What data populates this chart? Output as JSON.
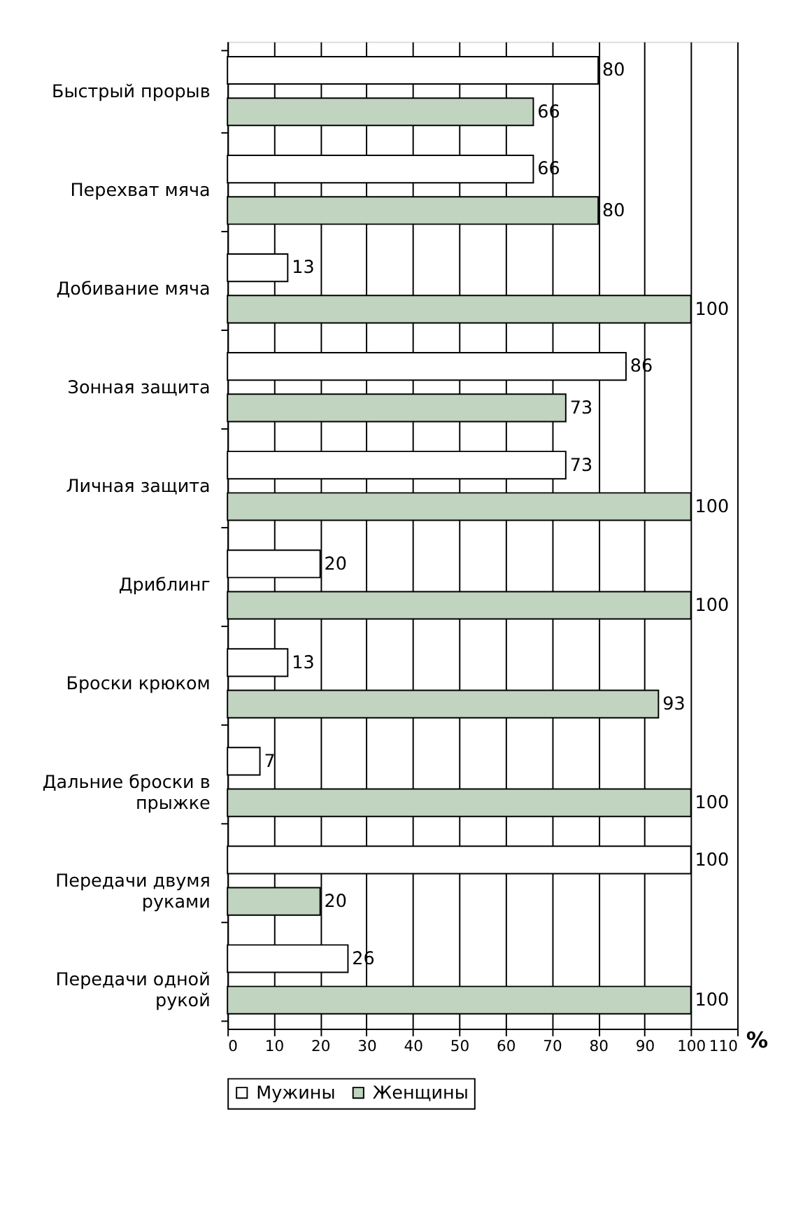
{
  "chart_data": {
    "type": "bar",
    "orientation": "horizontal",
    "xlabel": "%",
    "categories": [
      "Быстрый прорыв",
      "Перехват мяча",
      "Добивание мяча",
      "Зонная защита",
      "Личная защита",
      "Дриблинг",
      "Броски крюком",
      "Дальние броски в прыжке",
      "Передачи двумя руками",
      "Передачи одной рукой"
    ],
    "series": [
      {
        "name": "Мужины",
        "color": "#ffffff",
        "values": [
          80,
          66,
          13,
          86,
          73,
          20,
          13,
          7,
          100,
          26
        ]
      },
      {
        "name": "Женщины",
        "color": "#c0d4c0",
        "values": [
          66,
          80,
          100,
          73,
          100,
          100,
          93,
          100,
          20,
          100
        ]
      }
    ],
    "xlim": [
      0,
      110
    ],
    "xticks": [
      0,
      10,
      20,
      30,
      40,
      50,
      60,
      70,
      80,
      90,
      100,
      110
    ],
    "grid": "x",
    "legend": "bottom",
    "data_labels": true
  }
}
